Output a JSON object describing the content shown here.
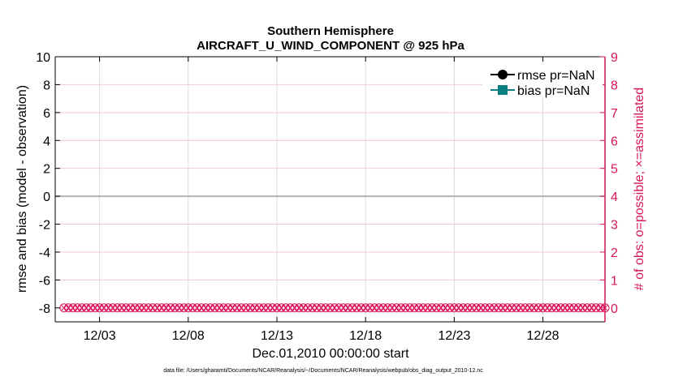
{
  "chart_data": {
    "type": "line",
    "title": [
      "Southern Hemisphere",
      "AIRCRAFT_U_WIND_COMPONENT @ 925 hPa"
    ],
    "xlabel": "Dec.01,2010 00:00:00 start",
    "ylabel_left": "rmse and bias (model - observation)",
    "ylabel_right": "# of obs: o=possible; ×=assimilated",
    "xlim": [
      "2010-11-30 12:00",
      "2010-12-31 12:00"
    ],
    "x_ticks": [
      "12/03",
      "12/08",
      "12/13",
      "12/18",
      "12/23",
      "12/28"
    ],
    "x_tick_days": [
      3,
      8,
      13,
      18,
      23,
      28
    ],
    "ylim_left": [
      -9,
      10
    ],
    "yticks_left": [
      10,
      8,
      6,
      4,
      2,
      0,
      -2,
      -4,
      -6,
      -8
    ],
    "ylim_right": [
      -0.5,
      9
    ],
    "yticks_right": [
      9,
      8,
      7,
      6,
      5,
      4,
      3,
      2,
      1,
      0
    ],
    "grid": true,
    "legend_position": "top-right",
    "legend": [
      "rmse pr=NaN",
      "bias pr=NaN"
    ],
    "series": [
      {
        "name": "rmse pr=NaN",
        "axis": "left",
        "values": "NaN",
        "color": "#000000",
        "marker": "circle"
      },
      {
        "name": "bias pr=NaN",
        "axis": "left",
        "values": "NaN",
        "color": "#0a7f7f",
        "marker": "square"
      },
      {
        "name": "possible",
        "axis": "right",
        "marker": "o",
        "start": "2010-12-01 00:00",
        "interval_hours": 6,
        "value": 0,
        "color": "#d6155a"
      },
      {
        "name": "assimilated",
        "axis": "right",
        "marker": "x",
        "start": "2010-12-01 00:00",
        "interval_hours": 6,
        "value": 0,
        "color": "#d6155a"
      }
    ],
    "zero_line": 0,
    "right_axis_color": "#d6155a"
  },
  "footer": "data file: /Users/gharamti/Documents/NCAR/Reanalysis/~/Documents/NCAR/Reanalysis/webpub/obs_diag_output_2010-12.nc"
}
